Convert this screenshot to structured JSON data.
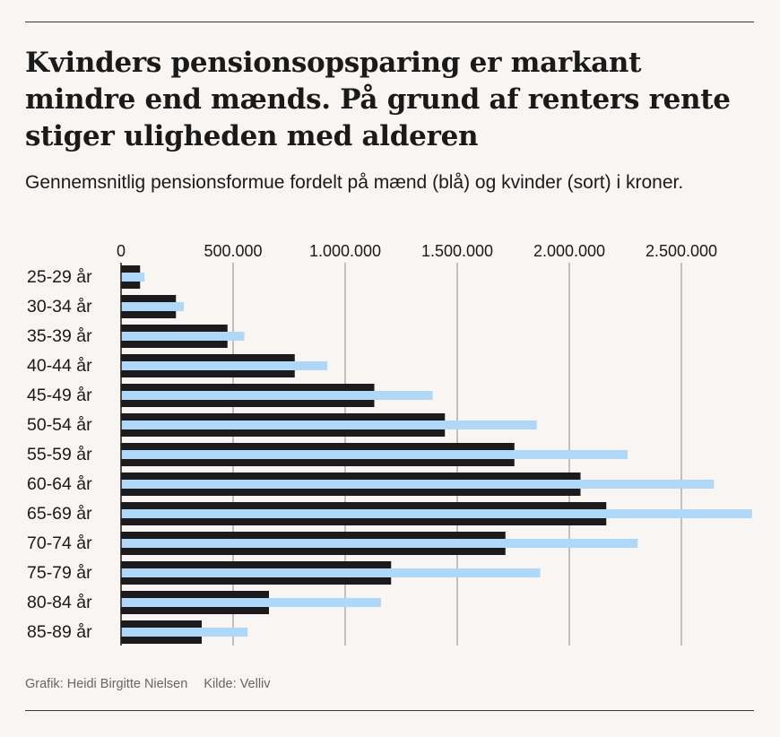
{
  "header": {
    "title": "Kvinders pensionsopsparing er markant mindre end mænds. På grund af renters rente stiger uligheden med alderen",
    "subtitle": "Gennemsnitlig pensionsformue fordelt på mænd (blå) og kvinder (sort) i kroner."
  },
  "footer": {
    "credit": "Grafik: Heidi Birgitte Nielsen",
    "source": "Kilde: Velliv"
  },
  "colors": {
    "men": "#afd8f8",
    "women": "#1c1a1d",
    "grid": "#8a8a8a",
    "background": "#f9f5f2"
  },
  "chart_data": {
    "type": "bar",
    "orientation": "horizontal",
    "categories": [
      "25-29 år",
      "30-34 år",
      "35-39 år",
      "40-44 år",
      "45-49 år",
      "50-54 år",
      "55-59 år",
      "60-64 år",
      "65-69 år",
      "70-74 år",
      "75-79 år",
      "80-84 år",
      "85-89 år"
    ],
    "series": [
      {
        "name": "mænd",
        "color": "#afd8f8",
        "values": [
          105000,
          280000,
          550000,
          920000,
          1390000,
          1855000,
          2260000,
          2645000,
          2815000,
          2305000,
          1870000,
          1160000,
          565000
        ]
      },
      {
        "name": "kvinder",
        "color": "#1c1a1d",
        "values": [
          85000,
          245000,
          475000,
          775000,
          1130000,
          1445000,
          1755000,
          2050000,
          2165000,
          1715000,
          1205000,
          660000,
          360000
        ]
      }
    ],
    "x_ticks": [
      0,
      500000,
      1000000,
      1500000,
      2000000,
      2500000
    ],
    "x_tick_labels": [
      "0",
      "500.000",
      "1.000.000",
      "1.500.000",
      "2.000.000",
      "2.500.000"
    ],
    "xlim": [
      0,
      2820000
    ],
    "axis_position": "top",
    "grid": true,
    "xlabel": "",
    "ylabel": ""
  }
}
